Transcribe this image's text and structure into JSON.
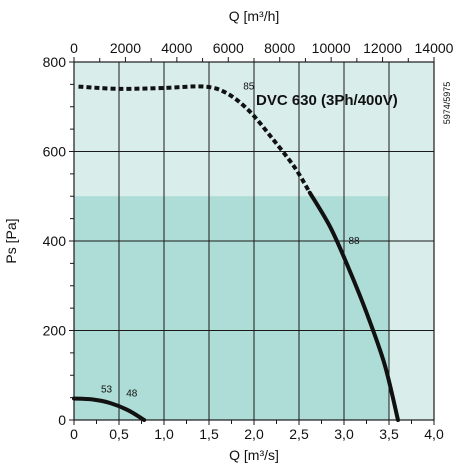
{
  "chart_data": {
    "type": "line",
    "model_label": "DVC 630 (3Ph/400V)",
    "side_code": "5974/5975",
    "x_axis_bottom": {
      "label": "Q [m³/s]",
      "range": [
        0,
        4.0
      ],
      "ticks": [
        0,
        0.5,
        1.0,
        1.5,
        2.0,
        2.5,
        3.0,
        3.5,
        4.0
      ],
      "tick_labels": [
        "0",
        "0,5",
        "1,0",
        "1,5",
        "2,0",
        "2,5",
        "3,0",
        "3,5",
        "4,0"
      ]
    },
    "x_axis_top": {
      "label": "Q [m³/h]",
      "range": [
        0,
        14000
      ],
      "ticks": [
        0,
        2000,
        4000,
        6000,
        8000,
        10000,
        12000,
        14000
      ],
      "tick_labels": [
        "0",
        "2000",
        "4000",
        "6000",
        "8000",
        "10000",
        "12000",
        "14000"
      ]
    },
    "y_axis": {
      "label": "Ps [Pa]",
      "range": [
        0,
        800
      ],
      "ticks": [
        0,
        200,
        400,
        600,
        800
      ],
      "tick_labels": [
        "0",
        "200",
        "400",
        "600",
        "800"
      ]
    },
    "grid": true,
    "regions": [
      {
        "name": "outer",
        "x": [
          0,
          4.0
        ],
        "y": [
          0,
          800
        ],
        "color": "#d9eeeb"
      },
      {
        "name": "inner",
        "x": [
          0,
          3.5
        ],
        "y": [
          0,
          500
        ],
        "color": "#aedcd6"
      }
    ],
    "series": [
      {
        "style": "dotted",
        "points": [
          [
            0.05,
            745
          ],
          [
            0.5,
            740
          ],
          [
            1.0,
            742
          ],
          [
            1.45,
            745
          ],
          [
            1.7,
            730
          ],
          [
            1.95,
            690
          ],
          [
            2.2,
            630
          ],
          [
            2.45,
            565
          ],
          [
            2.62,
            508
          ]
        ]
      },
      {
        "style": "solid",
        "points": [
          [
            2.62,
            508
          ],
          [
            2.85,
            430
          ],
          [
            3.05,
            340
          ],
          [
            3.25,
            240
          ],
          [
            3.45,
            125
          ],
          [
            3.6,
            0
          ]
        ]
      },
      {
        "style": "solid",
        "points": [
          [
            0,
            48
          ],
          [
            0.2,
            46
          ],
          [
            0.4,
            38
          ],
          [
            0.6,
            22
          ],
          [
            0.78,
            0
          ]
        ]
      }
    ],
    "annotations": [
      {
        "text": "85",
        "x": 1.88,
        "y": 738
      },
      {
        "text": "88",
        "x": 3.05,
        "y": 393
      },
      {
        "text": "53",
        "x": 0.3,
        "y": 62
      },
      {
        "text": "48",
        "x": 0.58,
        "y": 52
      }
    ]
  }
}
